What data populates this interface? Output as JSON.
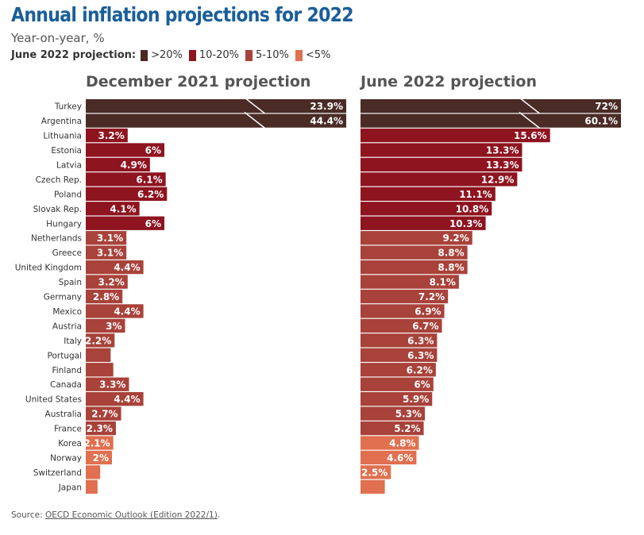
{
  "header": {
    "title": "Annual inflation projections for 2022",
    "subtitle": "Year-on-year, %"
  },
  "legend": {
    "title": "June 2022 projection:",
    "entries": [
      {
        "label": ">20%",
        "color": "#4a2b26"
      },
      {
        "label": "10-20%",
        "color": "#8e1420"
      },
      {
        "label": "5-10%",
        "color": "#a8423a"
      },
      {
        "label": "<5%",
        "color": "#e07050"
      }
    ]
  },
  "source": {
    "prefix": "Source: ",
    "link_text": "OECD Economic Outlook (Edition 2022/1)",
    "suffix": "."
  },
  "chart_data": {
    "type": "bar",
    "orientation": "horizontal",
    "categories": [
      "Turkey",
      "Argentina",
      "Lithuania",
      "Estonia",
      "Latvia",
      "Czech Rep.",
      "Poland",
      "Slovak Rep.",
      "Hungary",
      "Netherlands",
      "Greece",
      "United Kingdom",
      "Spain",
      "Germany",
      "Mexico",
      "Austria",
      "Italy",
      "Portugal",
      "Finland",
      "Canada",
      "United States",
      "Australia",
      "France",
      "Korea",
      "Norway",
      "Switzerland",
      "Japan"
    ],
    "color_groups": [
      "gt20",
      "gt20",
      "10-20",
      "10-20",
      "10-20",
      "10-20",
      "10-20",
      "10-20",
      "10-20",
      "5-10",
      "5-10",
      "5-10",
      "5-10",
      "5-10",
      "5-10",
      "5-10",
      "5-10",
      "5-10",
      "5-10",
      "5-10",
      "5-10",
      "5-10",
      "5-10",
      "lt5",
      "lt5",
      "lt5",
      "lt5"
    ],
    "group_colors": {
      "gt20": "#4a2b26",
      "10-20": "#8e1420",
      "5-10": "#a8423a",
      "lt5": "#e07050"
    },
    "series": [
      {
        "name": "December 2021 projection",
        "values": [
          23.9,
          44.4,
          3.2,
          6,
          4.9,
          6.1,
          6.2,
          4.1,
          6,
          3.1,
          3.1,
          4.4,
          3.2,
          2.8,
          4.4,
          3,
          2.2,
          1.9,
          2.1,
          3.3,
          4.4,
          2.7,
          2.3,
          2.1,
          2,
          1.1,
          0.9
        ],
        "labels": [
          "23.9%",
          "44.4%",
          "3.2%",
          "6%",
          "4.9%",
          "6.1%",
          "6.2%",
          "4.1%",
          "6%",
          "3.1%",
          "3.1%",
          "4.4%",
          "3.2%",
          "2.8%",
          "4.4%",
          "3%",
          "2.2%",
          "",
          "",
          "3.3%",
          "4.4%",
          "2.7%",
          "2.3%",
          "2.1%",
          "2%",
          "",
          ""
        ],
        "broken_axis": [
          true,
          true
        ]
      },
      {
        "name": "June 2022 projection",
        "values": [
          72,
          60.1,
          15.6,
          13.3,
          13.3,
          12.9,
          11.1,
          10.8,
          10.3,
          9.2,
          8.8,
          8.8,
          8.1,
          7.2,
          6.9,
          6.7,
          6.3,
          6.3,
          6.2,
          6,
          5.9,
          5.3,
          5.2,
          4.8,
          4.6,
          2.5,
          2.0
        ],
        "labels": [
          "72%",
          "60.1%",
          "15.6%",
          "13.3%",
          "13.3%",
          "12.9%",
          "11.1%",
          "10.8%",
          "10.3%",
          "9.2%",
          "8.8%",
          "8.8%",
          "8.1%",
          "7.2%",
          "6.9%",
          "6.7%",
          "6.3%",
          "6.3%",
          "6.2%",
          "6%",
          "5.9%",
          "5.3%",
          "5.2%",
          "4.8%",
          "4.6%",
          "2.5%",
          ""
        ],
        "broken_axis": [
          true,
          true
        ]
      }
    ],
    "xlabel": "",
    "ylabel": "",
    "grid": false
  }
}
